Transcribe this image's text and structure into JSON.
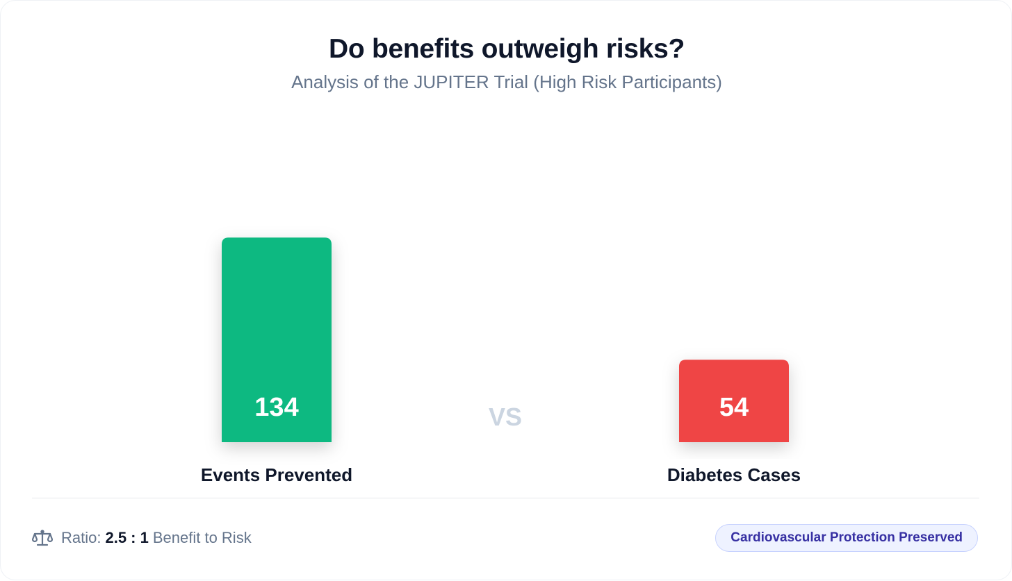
{
  "header": {
    "title": "Do benefits outweigh risks?",
    "subtitle": "Analysis of the JUPITER Trial (High Risk Participants)"
  },
  "chart_data": {
    "type": "bar",
    "title": "Do benefits outweigh risks?",
    "subtitle": "Analysis of the JUPITER Trial (High Risk Participants)",
    "categories": [
      "Events Prevented",
      "Diabetes Cases"
    ],
    "values": [
      134,
      54
    ],
    "value_labels": [
      "134",
      "54"
    ],
    "colors": [
      "#10b981",
      "#ef4444"
    ],
    "separator_label": "VS",
    "xlabel": "",
    "ylabel": "",
    "grid": false,
    "legend": "none"
  },
  "footer": {
    "icon": "scale-icon",
    "ratio_prefix": "Ratio:",
    "ratio_value": "2.5 : 1",
    "ratio_suffix": "Benefit to Risk",
    "badge_label": "Cardiovascular Protection Preserved",
    "badge_color": "#3730a3"
  }
}
